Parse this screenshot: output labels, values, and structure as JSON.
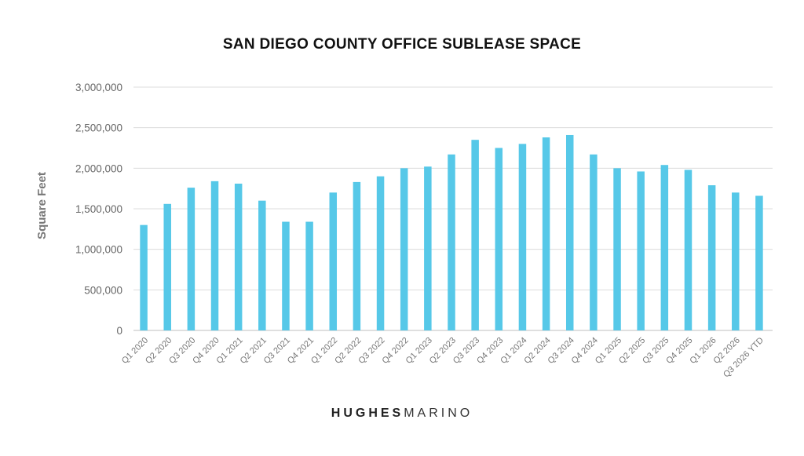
{
  "chart_data": {
    "type": "bar",
    "title": "SAN DIEGO COUNTY OFFICE SUBLEASE SPACE",
    "xlabel": "",
    "ylabel": "Square Feet",
    "ylim": [
      0,
      3000000
    ],
    "yticks": [
      0,
      500000,
      1000000,
      1500000,
      2000000,
      2500000,
      3000000
    ],
    "ytick_labels": [
      "0",
      "500,000",
      "1,000,000",
      "1,500,000",
      "2,000,000",
      "2,500,000",
      "3,000,000"
    ],
    "grid": true,
    "bar_color": "#56C8E8",
    "categories": [
      "Q1 2020",
      "Q2 2020",
      "Q3 2020",
      "Q4 2020",
      "Q1 2021",
      "Q2 2021",
      "Q3 2021",
      "Q4 2021",
      "Q1 2022",
      "Q2 2022",
      "Q3 2022",
      "Q4 2022",
      "Q1 2023",
      "Q2 2023",
      "Q3 2023",
      "Q4 2023",
      "Q1 2024",
      "Q2 2024",
      "Q3 2024",
      "Q4 2024",
      "Q1 2025",
      "Q2 2025",
      "Q3 2025",
      "Q4 2025",
      "Q1 2026",
      "Q2 2026",
      "Q3 2026 YTD"
    ],
    "values": [
      1300000,
      1560000,
      1760000,
      1840000,
      1810000,
      1600000,
      1340000,
      1340000,
      1700000,
      1830000,
      1900000,
      2000000,
      2020000,
      2170000,
      2350000,
      2250000,
      2300000,
      2380000,
      2410000,
      2170000,
      2000000,
      1960000,
      2040000,
      1980000,
      1790000,
      1700000,
      1660000
    ]
  },
  "footer": {
    "logo_part1": "HUGHES",
    "logo_part2": "MARINO"
  }
}
